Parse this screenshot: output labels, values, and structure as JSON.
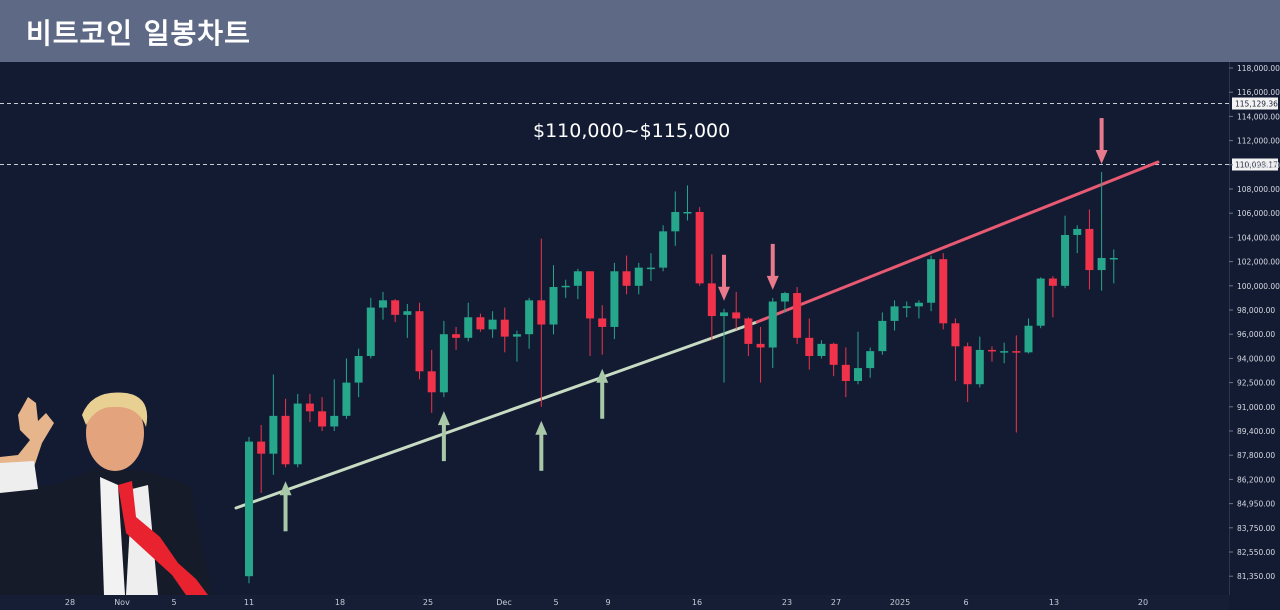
{
  "header": {
    "title": "비트코인 일봉차트"
  },
  "annotations": {
    "range_label": "$110,000~$115,000",
    "hline_labels": [
      "115,129.36",
      "110,098.17"
    ]
  },
  "chart_data": {
    "type": "candlestick",
    "title": "비트코인 일봉차트",
    "y_ticks": [
      "118,000.00",
      "116,000.00",
      "114,000.00",
      "112,000.00",
      "110,000.00",
      "108,000.00",
      "106,000.00",
      "104,000.00",
      "102,000.00",
      "100,000.00",
      "98,000.00",
      "96,000.00",
      "94,000.00",
      "92,500.00",
      "91,000.00",
      "89,400.00",
      "87,800.00",
      "86,200.00",
      "84,950.00",
      "83,750.00",
      "82,550.00",
      "81,350.00"
    ],
    "x_ticks": [
      "28",
      "Nov",
      "5",
      "11",
      "18",
      "25",
      "Dec",
      "5",
      "9",
      "16",
      "23",
      "27",
      "2025",
      "6",
      "13",
      "20"
    ],
    "hlines": [
      115129.36,
      110098.17
    ],
    "colors": {
      "up": "#26a68b",
      "down": "#f0324b",
      "upper_trendline": "#e85a72",
      "lower_trendline": "#c8dcc4",
      "up_arrow": "#a8c8a8",
      "down_arrow": "#e87a8c"
    },
    "candles": [
      {
        "date": "Nov 11",
        "o": 81350,
        "h": 89000,
        "l": 81000,
        "c": 88700
      },
      {
        "date": "Nov 12",
        "o": 88700,
        "h": 89800,
        "l": 85500,
        "c": 87900
      },
      {
        "date": "Nov 13",
        "o": 87900,
        "h": 93000,
        "l": 86500,
        "c": 90400
      },
      {
        "date": "Nov 14",
        "o": 90400,
        "h": 91500,
        "l": 87000,
        "c": 87200
      },
      {
        "date": "Nov 15",
        "o": 87200,
        "h": 91800,
        "l": 87000,
        "c": 91200
      },
      {
        "date": "Nov 16",
        "o": 91200,
        "h": 91800,
        "l": 90000,
        "c": 90700
      },
      {
        "date": "Nov 17",
        "o": 90700,
        "h": 91600,
        "l": 89400,
        "c": 89700
      },
      {
        "date": "Nov 18",
        "o": 89700,
        "h": 92700,
        "l": 89400,
        "c": 90400
      },
      {
        "date": "Nov 19",
        "o": 90400,
        "h": 94000,
        "l": 90200,
        "c": 92500
      },
      {
        "date": "Nov 20",
        "o": 92500,
        "h": 94800,
        "l": 91600,
        "c": 94200
      },
      {
        "date": "Nov 21",
        "o": 94200,
        "h": 99000,
        "l": 94000,
        "c": 98200
      },
      {
        "date": "Nov 22",
        "o": 98200,
        "h": 99500,
        "l": 97200,
        "c": 98800
      },
      {
        "date": "Nov 23",
        "o": 98800,
        "h": 98900,
        "l": 97000,
        "c": 97600
      },
      {
        "date": "Nov 24",
        "o": 97600,
        "h": 98500,
        "l": 95700,
        "c": 97900
      },
      {
        "date": "Nov 25",
        "o": 97900,
        "h": 98600,
        "l": 92700,
        "c": 93200
      },
      {
        "date": "Nov 26",
        "o": 93200,
        "h": 94700,
        "l": 90600,
        "c": 91900
      },
      {
        "date": "Nov 27",
        "o": 91900,
        "h": 97100,
        "l": 91600,
        "c": 96000
      },
      {
        "date": "Nov 28",
        "o": 96000,
        "h": 96600,
        "l": 94700,
        "c": 95700
      },
      {
        "date": "Nov 29",
        "o": 95700,
        "h": 98600,
        "l": 95400,
        "c": 97400
      },
      {
        "date": "Nov 30",
        "o": 97400,
        "h": 97700,
        "l": 96200,
        "c": 96400
      },
      {
        "date": "Dec 1",
        "o": 96400,
        "h": 97900,
        "l": 95700,
        "c": 97200
      },
      {
        "date": "Dec 2",
        "o": 97200,
        "h": 98200,
        "l": 94500,
        "c": 95800
      },
      {
        "date": "Dec 3",
        "o": 95800,
        "h": 96300,
        "l": 93800,
        "c": 96000
      },
      {
        "date": "Dec 4",
        "o": 96000,
        "h": 99000,
        "l": 94800,
        "c": 98800
      },
      {
        "date": "Dec 5",
        "o": 98800,
        "h": 103900,
        "l": 91000,
        "c": 96800
      },
      {
        "date": "Dec 6",
        "o": 96800,
        "h": 101700,
        "l": 96000,
        "c": 99900
      },
      {
        "date": "Dec 7",
        "o": 99900,
        "h": 100500,
        "l": 99000,
        "c": 100000
      },
      {
        "date": "Dec 8",
        "o": 100000,
        "h": 101400,
        "l": 98900,
        "c": 101200
      },
      {
        "date": "Dec 9",
        "o": 101200,
        "h": 101200,
        "l": 94200,
        "c": 97300
      },
      {
        "date": "Dec 10",
        "o": 97300,
        "h": 98400,
        "l": 94300,
        "c": 96600
      },
      {
        "date": "Dec 11",
        "o": 96600,
        "h": 101900,
        "l": 95600,
        "c": 101200
      },
      {
        "date": "Dec 12",
        "o": 101200,
        "h": 102500,
        "l": 99300,
        "c": 100000
      },
      {
        "date": "Dec 13",
        "o": 100000,
        "h": 101900,
        "l": 99300,
        "c": 101500
      },
      {
        "date": "Dec 14",
        "o": 101500,
        "h": 102700,
        "l": 100400,
        "c": 101500
      },
      {
        "date": "Dec 15",
        "o": 101500,
        "h": 105000,
        "l": 101200,
        "c": 104500
      },
      {
        "date": "Dec 16",
        "o": 104500,
        "h": 107800,
        "l": 103300,
        "c": 106100
      },
      {
        "date": "Dec 17",
        "o": 106100,
        "h": 108300,
        "l": 105400,
        "c": 106100
      },
      {
        "date": "Dec 18",
        "o": 106100,
        "h": 106500,
        "l": 100000,
        "c": 100200
      },
      {
        "date": "Dec 19",
        "o": 100200,
        "h": 102600,
        "l": 95500,
        "c": 97500
      },
      {
        "date": "Dec 20",
        "o": 97500,
        "h": 98100,
        "l": 92500,
        "c": 97800
      },
      {
        "date": "Dec 21",
        "o": 97800,
        "h": 99500,
        "l": 96400,
        "c": 97300
      },
      {
        "date": "Dec 22",
        "o": 97300,
        "h": 97400,
        "l": 94200,
        "c": 95200
      },
      {
        "date": "Dec 23",
        "o": 95200,
        "h": 96600,
        "l": 92500,
        "c": 94900
      },
      {
        "date": "Dec 24",
        "o": 94900,
        "h": 99000,
        "l": 93400,
        "c": 98700
      },
      {
        "date": "Dec 25",
        "o": 98700,
        "h": 99500,
        "l": 97800,
        "c": 99400
      },
      {
        "date": "Dec 26",
        "o": 99400,
        "h": 99900,
        "l": 95200,
        "c": 95700
      },
      {
        "date": "Dec 27",
        "o": 95700,
        "h": 97300,
        "l": 93300,
        "c": 94200
      },
      {
        "date": "Dec 28",
        "o": 94200,
        "h": 95500,
        "l": 94000,
        "c": 95200
      },
      {
        "date": "Dec 29",
        "o": 95200,
        "h": 95300,
        "l": 92900,
        "c": 93600
      },
      {
        "date": "Dec 30",
        "o": 93600,
        "h": 94900,
        "l": 91600,
        "c": 92600
      },
      {
        "date": "Dec 31",
        "o": 92600,
        "h": 96200,
        "l": 92400,
        "c": 93400
      },
      {
        "date": "Jan 1",
        "o": 93400,
        "h": 94900,
        "l": 92800,
        "c": 94600
      },
      {
        "date": "Jan 2",
        "o": 94600,
        "h": 97800,
        "l": 94300,
        "c": 97100
      },
      {
        "date": "Jan 3",
        "o": 97100,
        "h": 98800,
        "l": 96300,
        "c": 98300
      },
      {
        "date": "Jan 4",
        "o": 98300,
        "h": 98700,
        "l": 97400,
        "c": 98300
      },
      {
        "date": "Jan 5",
        "o": 98300,
        "h": 98800,
        "l": 97300,
        "c": 98600
      },
      {
        "date": "Jan 6",
        "o": 98600,
        "h": 102500,
        "l": 97900,
        "c": 102200
      },
      {
        "date": "Jan 7",
        "o": 102200,
        "h": 102700,
        "l": 96400,
        "c": 96900
      },
      {
        "date": "Jan 8",
        "o": 96900,
        "h": 97300,
        "l": 92600,
        "c": 95000
      },
      {
        "date": "Jan 9",
        "o": 95000,
        "h": 95300,
        "l": 91300,
        "c": 92400
      },
      {
        "date": "Jan 10",
        "o": 92400,
        "h": 95800,
        "l": 92200,
        "c": 94700
      },
      {
        "date": "Jan 11",
        "o": 94700,
        "h": 95000,
        "l": 93800,
        "c": 94600
      },
      {
        "date": "Jan 12",
        "o": 94600,
        "h": 95300,
        "l": 93700,
        "c": 94600
      },
      {
        "date": "Jan 13",
        "o": 94600,
        "h": 95900,
        "l": 89300,
        "c": 94500
      },
      {
        "date": "Jan 14",
        "o": 94500,
        "h": 97300,
        "l": 94400,
        "c": 96700
      },
      {
        "date": "Jan 15",
        "o": 96700,
        "h": 100700,
        "l": 96500,
        "c": 100600
      },
      {
        "date": "Jan 16",
        "o": 100600,
        "h": 100800,
        "l": 97400,
        "c": 100000
      },
      {
        "date": "Jan 17",
        "o": 100000,
        "h": 105800,
        "l": 99800,
        "c": 104200
      },
      {
        "date": "Jan 18",
        "o": 104200,
        "h": 105000,
        "l": 102700,
        "c": 104700
      },
      {
        "date": "Jan 19",
        "o": 104700,
        "h": 106300,
        "l": 99700,
        "c": 101300
      },
      {
        "date": "Jan 20",
        "o": 101300,
        "h": 109400,
        "l": 99600,
        "c": 102300
      },
      {
        "date": "Jan 21",
        "o": 102300,
        "h": 103000,
        "l": 100200,
        "c": 102300
      }
    ],
    "up_arrows": [
      "Nov 14",
      "Nov 27",
      "Dec 5",
      "Dec 10"
    ],
    "down_arrows": [
      "Dec 20",
      "Dec 24",
      "Jan 20"
    ]
  }
}
